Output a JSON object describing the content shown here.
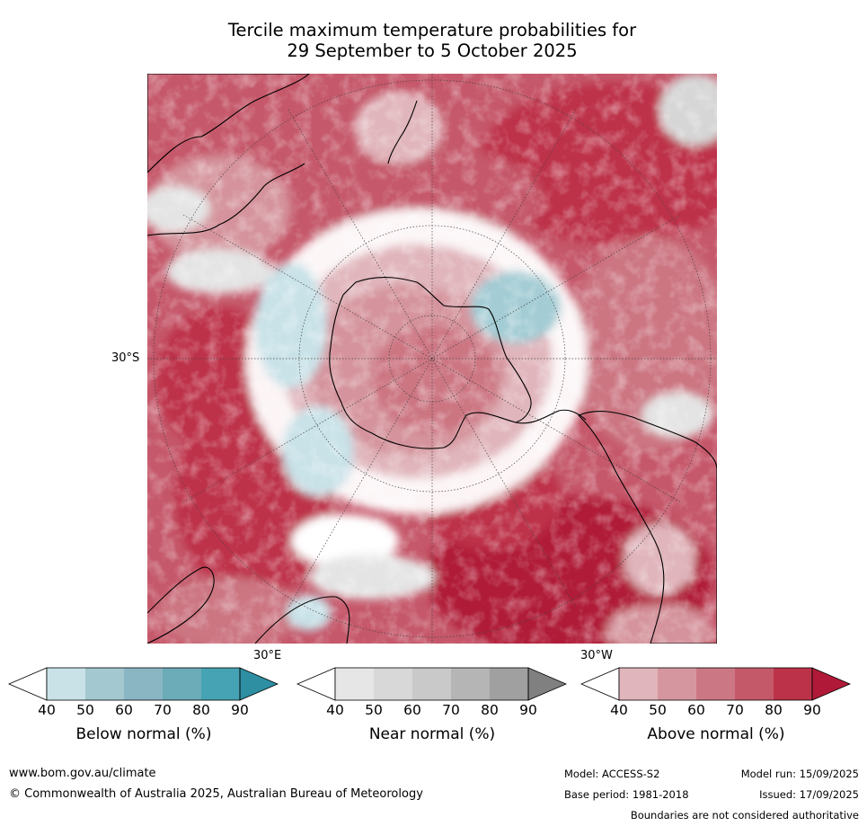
{
  "title_line1": "Tercile maximum temperature probabilities for",
  "title_line2": "29 September to 5 October 2025",
  "map": {
    "lat_label": "30°S",
    "lon_label_east": "30°E",
    "lon_label_west": "30°W",
    "projection": "south-polar-stereographic",
    "colors": {
      "above_40": "#e0b5bb",
      "above_50": "#d5949d",
      "above_60": "#cc7682",
      "above_70": "#c5586a",
      "above_80": "#bd3249",
      "above_90": "#b01a38",
      "below_40": "#c8e2e8",
      "below_50": "#a3ccd4",
      "below_60": "#8cbcc8",
      "near_40": "#e4e4e4",
      "near_50": "#d6d6d6",
      "land_outline": "#000000",
      "background": "#ffffff"
    }
  },
  "colorbars": [
    {
      "title": "Below normal (%)",
      "ticks": [
        "40",
        "50",
        "60",
        "70",
        "80",
        "90"
      ],
      "colors": [
        "#ffffff",
        "#c8e2e8",
        "#a3c8cf",
        "#8ab6c3",
        "#6cabb8",
        "#45a3b3",
        "#2e8fa3"
      ]
    },
    {
      "title": "Near normal (%)",
      "ticks": [
        "40",
        "50",
        "60",
        "70",
        "80",
        "90"
      ],
      "colors": [
        "#ffffff",
        "#e6e6e6",
        "#d8d8d8",
        "#c9c9c9",
        "#b5b5b5",
        "#a0a0a0",
        "#808080"
      ]
    },
    {
      "title": "Above normal (%)",
      "ticks": [
        "40",
        "50",
        "60",
        "70",
        "80",
        "90"
      ],
      "colors": [
        "#ffffff",
        "#e0b5bb",
        "#d5969f",
        "#cb7884",
        "#c45a69",
        "#bb3249",
        "#b01a38"
      ]
    }
  ],
  "footer": {
    "website": "www.bom.gov.au/climate",
    "copyright": "© Commonwealth of Australia 2025, Australian Bureau of Meteorology",
    "model": "Model: ACCESS-S2",
    "base_period": "Base period: 1981-2018",
    "model_run": "Model run: 15/09/2025",
    "issued": "Issued: 17/09/2025",
    "disclaimer": "Boundaries are not considered authoritative"
  }
}
